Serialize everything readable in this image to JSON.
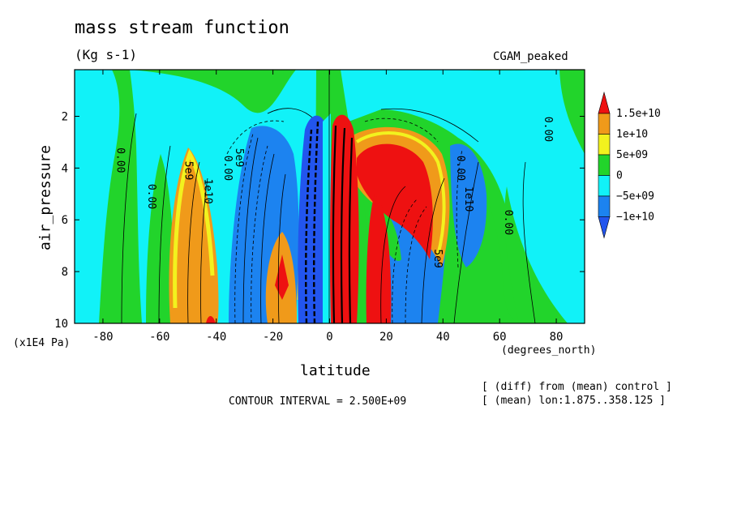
{
  "chart_data": {
    "type": "heatmap",
    "title": "mass stream function",
    "units": "(Kg s-1)",
    "tag": "CGAM_peaked",
    "xlabel": "latitude",
    "x_units": "(degrees_north)",
    "ylabel": "air_pressure",
    "y_units": "(x1E4 Pa)",
    "xlim": [
      -90,
      90
    ],
    "ylim": [
      10,
      0.2
    ],
    "x_ticks": [
      "-80",
      "-60",
      "-40",
      "-20",
      "0",
      "20",
      "40",
      "60",
      "80"
    ],
    "y_ticks": [
      "2",
      "4",
      "6",
      "8",
      "10"
    ],
    "contour_interval": "CONTOUR INTERVAL = 2.500E+09",
    "notes": [
      "[ (diff) from (mean) control ]",
      "[ (mean) lon:1.875..358.125 ]"
    ],
    "colorbar": {
      "labels": [
        "1.5e+10",
        "1e+10",
        "5e+09",
        "0",
        "−5e+09",
        "−1e+10"
      ],
      "colors": [
        "#ee1111",
        "#f09a1a",
        "#f2f21e",
        "#22d42b",
        "#11f2f8",
        "#1c83f0",
        "#2255ee"
      ]
    },
    "contour_labels": [
      {
        "text": "0.00",
        "x": -75,
        "y": 3.7
      },
      {
        "text": "0.00",
        "x": -64,
        "y": 5.1
      },
      {
        "text": "5e9",
        "x": -51,
        "y": 4.1
      },
      {
        "text": "1e10",
        "x": -44,
        "y": 4.9
      },
      {
        "text": "0.00",
        "x": -37,
        "y": 4.0
      },
      {
        "text": "5e9",
        "x": -33,
        "y": 3.6
      },
      {
        "text": "0.00",
        "x": 45,
        "y": 4.0
      },
      {
        "text": "1e10",
        "x": 48,
        "y": 5.2
      },
      {
        "text": "5e9",
        "x": 37,
        "y": 7.5
      },
      {
        "text": "0.00",
        "x": 62,
        "y": 6.1
      },
      {
        "text": "0.00",
        "x": 76,
        "y": 2.5
      }
    ]
  }
}
